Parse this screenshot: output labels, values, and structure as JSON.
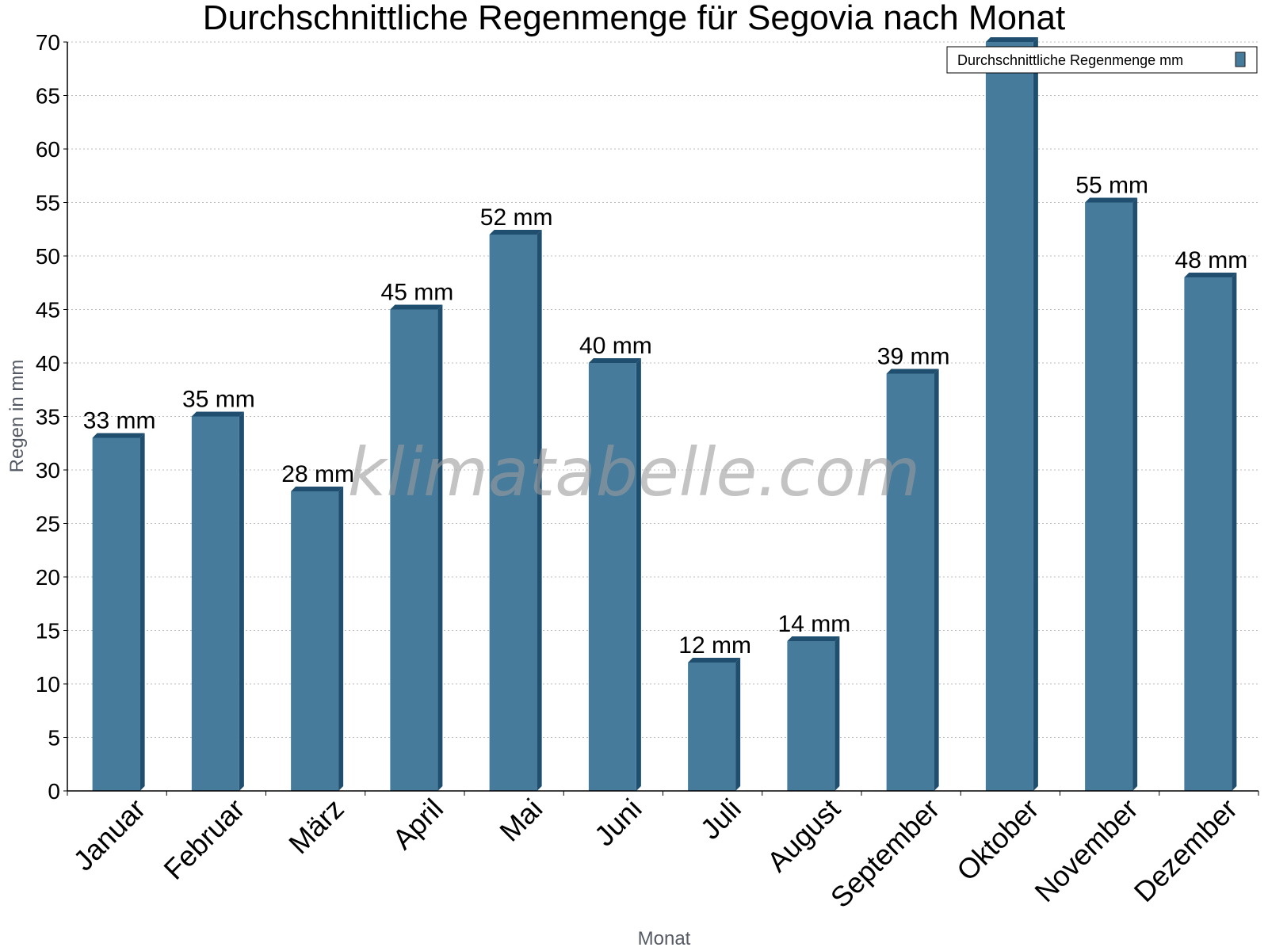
{
  "chart_data": {
    "type": "bar",
    "title": "Durchschnittliche Regenmenge für Segovia nach Monat",
    "xlabel": "Monat",
    "ylabel": "Regen in mm",
    "ylim": [
      0,
      70
    ],
    "yticks": [
      0,
      5,
      10,
      15,
      20,
      25,
      30,
      35,
      40,
      45,
      50,
      55,
      60,
      65,
      70
    ],
    "grid": true,
    "legend_position": "top-right",
    "categories": [
      "Januar",
      "Februar",
      "März",
      "April",
      "Mai",
      "Juni",
      "Juli",
      "August",
      "September",
      "Oktober",
      "November",
      "Dezember"
    ],
    "series": [
      {
        "name": "Durchschnittliche Regenmenge mm",
        "values": [
          33,
          35,
          28,
          45,
          52,
          40,
          12,
          14,
          39,
          70,
          55,
          48
        ],
        "data_labels": [
          "33 mm",
          "35 mm",
          "28 mm",
          "45 mm",
          "52 mm",
          "40 mm",
          "12 mm",
          "14 mm",
          "39 mm",
          "",
          "55 mm",
          "48 mm"
        ],
        "color": "#467b9c",
        "side_color": "#1f4e6e"
      }
    ],
    "watermark": "klimatabelle.com"
  }
}
